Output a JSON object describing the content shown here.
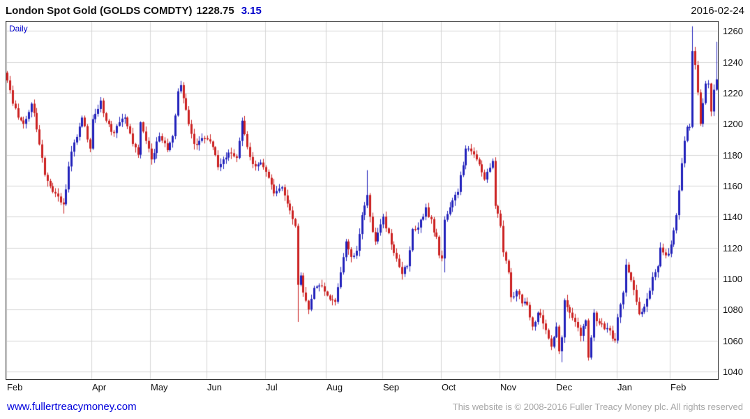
{
  "header": {
    "title": "London Spot Gold (GOLDS COMDTY)",
    "last_price": "1228.75",
    "change": "3.15",
    "date": "2016-02-24"
  },
  "chart": {
    "interval_label": "Daily",
    "colors": {
      "up": "#2222bb",
      "down": "#cc2222",
      "grid": "#d6d6d6",
      "border": "#333333"
    }
  },
  "chart_data": {
    "type": "candlestick",
    "title": "London Spot Gold (GOLDS COMDTY)",
    "interval": "Daily",
    "last_price": 1228.75,
    "change": 3.15,
    "date": "2016-02-24",
    "y_axis": {
      "min": 1035,
      "max": 1266,
      "ticks": [
        1040,
        1060,
        1080,
        1100,
        1120,
        1140,
        1160,
        1180,
        1200,
        1220,
        1240,
        1260
      ]
    },
    "x_axis": {
      "labels": [
        {
          "label": "Feb",
          "i": 0
        },
        {
          "label": "Apr",
          "i": 32
        },
        {
          "label": "May",
          "i": 54
        },
        {
          "label": "Jun",
          "i": 75
        },
        {
          "label": "Jul",
          "i": 97
        },
        {
          "label": "Aug",
          "i": 120
        },
        {
          "label": "Sep",
          "i": 141
        },
        {
          "label": "Oct",
          "i": 163
        },
        {
          "label": "Nov",
          "i": 185
        },
        {
          "label": "Dec",
          "i": 206
        },
        {
          "label": "Jan",
          "i": 229
        },
        {
          "label": "Feb",
          "i": 249
        }
      ]
    },
    "num_days": 267,
    "close_anchors": [
      [
        0,
        1228
      ],
      [
        2,
        1213
      ],
      [
        4,
        1204
      ],
      [
        6,
        1200
      ],
      [
        9,
        1213
      ],
      [
        10,
        1207
      ],
      [
        14,
        1167
      ],
      [
        17,
        1156
      ],
      [
        21,
        1148
      ],
      [
        24,
        1182
      ],
      [
        28,
        1204
      ],
      [
        31,
        1184
      ],
      [
        32,
        1203
      ],
      [
        35,
        1215
      ],
      [
        37,
        1202
      ],
      [
        40,
        1194
      ],
      [
        42,
        1201
      ],
      [
        44,
        1204
      ],
      [
        47,
        1187
      ],
      [
        49,
        1180
      ],
      [
        50,
        1201
      ],
      [
        53,
        1184
      ],
      [
        54,
        1177
      ],
      [
        57,
        1192
      ],
      [
        60,
        1183
      ],
      [
        62,
        1192
      ],
      [
        64,
        1221
      ],
      [
        65,
        1225
      ],
      [
        67,
        1209
      ],
      [
        70,
        1187
      ],
      [
        72,
        1189
      ],
      [
        75,
        1190
      ],
      [
        77,
        1185
      ],
      [
        79,
        1172
      ],
      [
        81,
        1177
      ],
      [
        84,
        1181
      ],
      [
        86,
        1178
      ],
      [
        88,
        1202
      ],
      [
        90,
        1185
      ],
      [
        92,
        1174
      ],
      [
        95,
        1175
      ],
      [
        96,
        1172
      ],
      [
        97,
        1169
      ],
      [
        100,
        1155
      ],
      [
        103,
        1159
      ],
      [
        106,
        1144
      ],
      [
        108,
        1134
      ],
      [
        109,
        1096
      ],
      [
        110,
        1102
      ],
      [
        111,
        1091
      ],
      [
        113,
        1080
      ],
      [
        115,
        1094
      ],
      [
        118,
        1095
      ],
      [
        120,
        1089
      ],
      [
        123,
        1085
      ],
      [
        125,
        1104
      ],
      [
        127,
        1124
      ],
      [
        129,
        1114
      ],
      [
        131,
        1118
      ],
      [
        133,
        1141
      ],
      [
        135,
        1154
      ],
      [
        136,
        1140
      ],
      [
        138,
        1124
      ],
      [
        140,
        1135
      ],
      [
        141,
        1140
      ],
      [
        144,
        1122
      ],
      [
        148,
        1103
      ],
      [
        150,
        1108
      ],
      [
        152,
        1132
      ],
      [
        154,
        1133
      ],
      [
        157,
        1146
      ],
      [
        161,
        1127
      ],
      [
        162,
        1115
      ],
      [
        163,
        1113
      ],
      [
        164,
        1138
      ],
      [
        166,
        1146
      ],
      [
        169,
        1156
      ],
      [
        172,
        1184
      ],
      [
        173,
        1184
      ],
      [
        176,
        1177
      ],
      [
        179,
        1164
      ],
      [
        182,
        1176
      ],
      [
        183,
        1147
      ],
      [
        184,
        1142
      ],
      [
        185,
        1134
      ],
      [
        186,
        1117
      ],
      [
        188,
        1104
      ],
      [
        189,
        1088
      ],
      [
        191,
        1092
      ],
      [
        193,
        1084
      ],
      [
        195,
        1083
      ],
      [
        197,
        1069
      ],
      [
        199,
        1078
      ],
      [
        201,
        1071
      ],
      [
        204,
        1056
      ],
      [
        206,
        1069
      ],
      [
        207,
        1053
      ],
      [
        208,
        1062
      ],
      [
        209,
        1086
      ],
      [
        211,
        1078
      ],
      [
        213,
        1072
      ],
      [
        215,
        1063
      ],
      [
        217,
        1073
      ],
      [
        218,
        1049
      ],
      [
        220,
        1078
      ],
      [
        222,
        1071
      ],
      [
        225,
        1068
      ],
      [
        228,
        1060
      ],
      [
        229,
        1075
      ],
      [
        231,
        1091
      ],
      [
        232,
        1109
      ],
      [
        233,
        1104
      ],
      [
        236,
        1085
      ],
      [
        237,
        1077
      ],
      [
        240,
        1087
      ],
      [
        242,
        1101
      ],
      [
        244,
        1108
      ],
      [
        245,
        1120
      ],
      [
        247,
        1115
      ],
      [
        248,
        1116
      ],
      [
        249,
        1122
      ],
      [
        251,
        1141
      ],
      [
        252,
        1157
      ],
      [
        254,
        1189
      ],
      [
        255,
        1198
      ],
      [
        256,
        1198
      ],
      [
        257,
        1247
      ],
      [
        258,
        1238
      ],
      [
        260,
        1200
      ],
      [
        262,
        1226
      ],
      [
        263,
        1226
      ],
      [
        264,
        1208
      ],
      [
        265,
        1222
      ],
      [
        266,
        1228.75
      ]
    ],
    "wick_overrides": [
      {
        "i": 21,
        "low": 1142
      },
      {
        "i": 109,
        "low": 1072
      },
      {
        "i": 113,
        "low": 1077
      },
      {
        "i": 135,
        "high": 1170
      },
      {
        "i": 164,
        "low": 1104
      },
      {
        "i": 208,
        "low": 1046
      },
      {
        "i": 218,
        "low": 1047
      },
      {
        "i": 257,
        "high": 1263
      },
      {
        "i": 266,
        "high": 1253
      }
    ],
    "noise_amp": 2.0,
    "wick_amp": 3.4
  },
  "footer": {
    "link": "www.fullertreacymoney.com",
    "copyright": "This website is © 2008-2016 Fuller Treacy Money plc. All rights reserved"
  }
}
